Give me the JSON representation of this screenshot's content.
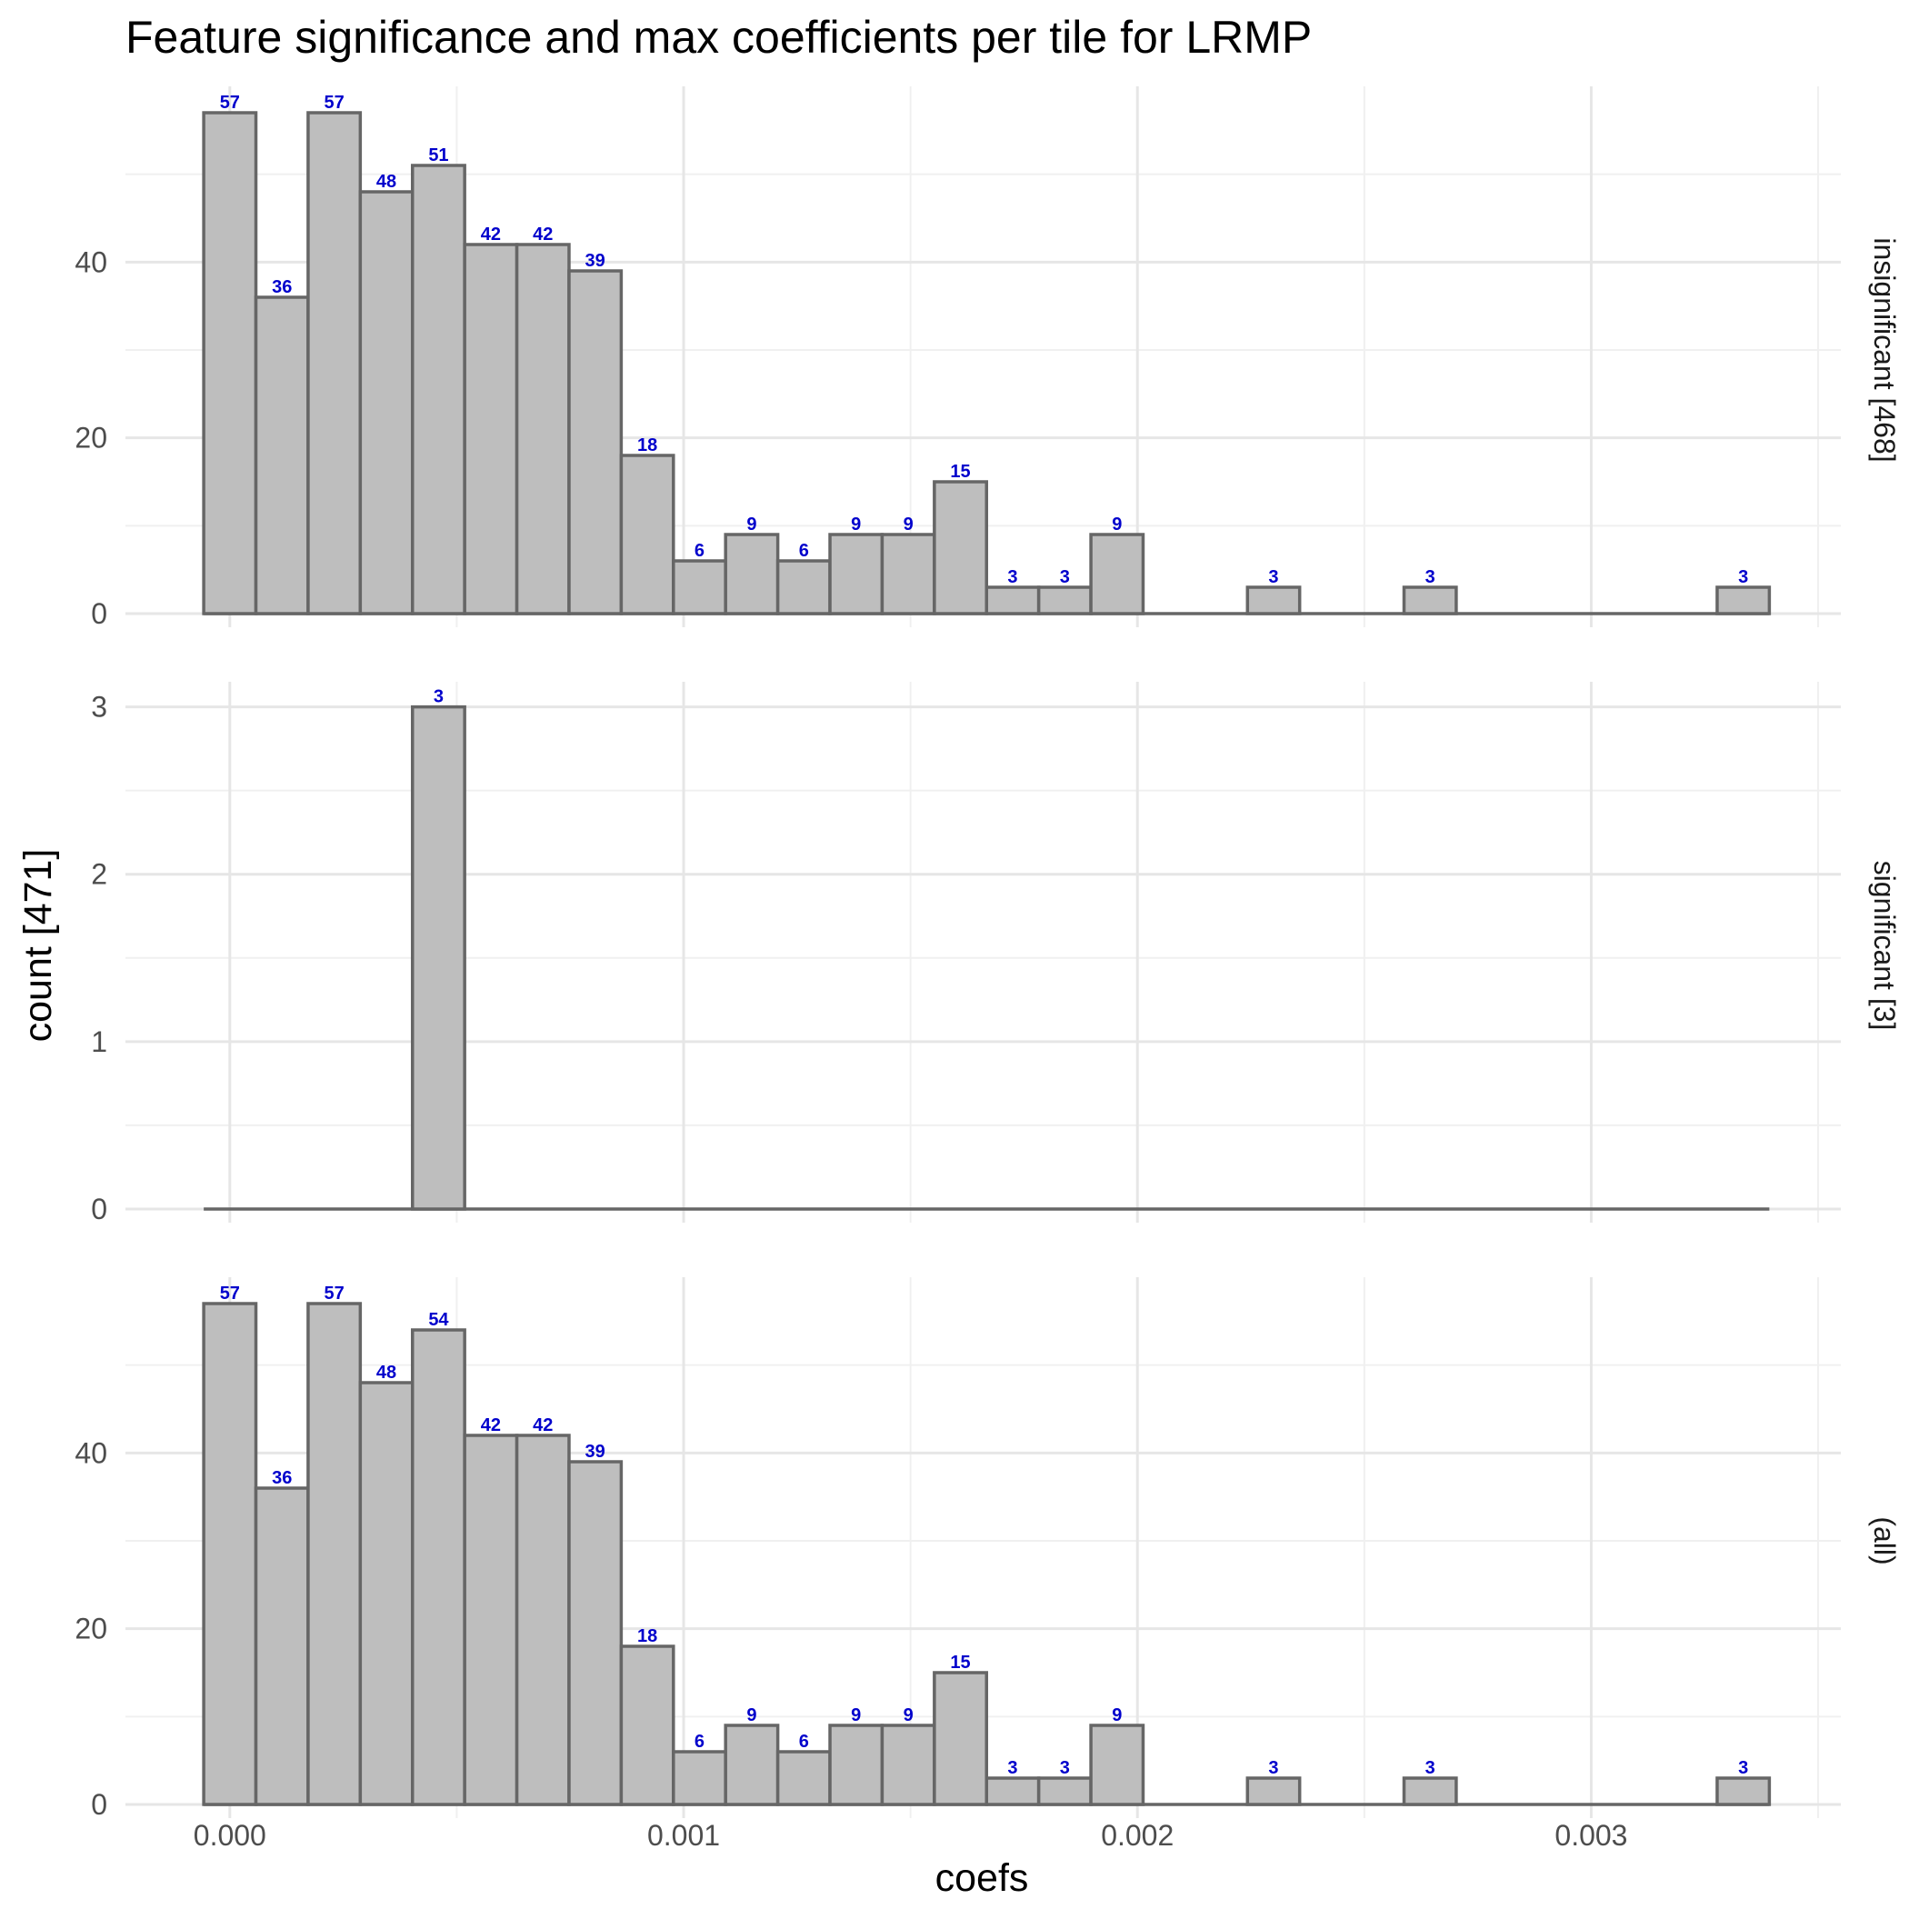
{
  "chart_data": {
    "type": "bar",
    "title": "Feature significance and max coefficients per tile for LRMP",
    "xlabel": "coefs",
    "ylabel": "count [471]",
    "xlim": [
      -0.00023,
      0.00355
    ],
    "x_ticks": [
      0.0,
      0.001,
      0.002,
      0.003
    ],
    "x_tick_labels": [
      "0.000",
      "0.001",
      "0.002",
      "0.003"
    ],
    "bin_width": 0.000115,
    "bin_centers": [
      0.0,
      0.000115,
      0.00023,
      0.000345,
      0.00046,
      0.000575,
      0.00069,
      0.000805,
      0.00092,
      0.001035,
      0.00115,
      0.001265,
      0.00138,
      0.001495,
      0.00161,
      0.001725,
      0.00184,
      0.001955,
      0.00207,
      0.002185,
      0.0023,
      0.002415,
      0.00253,
      0.002645,
      0.00276,
      0.002875,
      0.00299,
      0.003105,
      0.00322,
      0.003335
    ],
    "grid": true,
    "colors": {
      "bar_fill": "#bebebe",
      "bar_stroke": "#666666",
      "label": "#0000cc",
      "grid": "#e6e6e6"
    },
    "facets": [
      {
        "strip": "insignificant [468]",
        "ylim": [
          0,
          60
        ],
        "y_ticks": [
          0,
          20,
          40
        ],
        "counts": [
          57,
          36,
          57,
          48,
          51,
          42,
          42,
          39,
          18,
          6,
          9,
          6,
          9,
          9,
          15,
          3,
          3,
          9,
          0,
          0,
          3,
          0,
          0,
          3,
          0,
          0,
          0,
          0,
          0,
          3
        ]
      },
      {
        "strip": "significant [3]",
        "ylim": [
          0,
          3.15
        ],
        "y_ticks": [
          0,
          1,
          2,
          3
        ],
        "counts": [
          0,
          0,
          0,
          0,
          3,
          0,
          0,
          0,
          0,
          0,
          0,
          0,
          0,
          0,
          0,
          0,
          0,
          0,
          0,
          0,
          0,
          0,
          0,
          0,
          0,
          0,
          0,
          0,
          0,
          0
        ]
      },
      {
        "strip": "(all)",
        "ylim": [
          0,
          60
        ],
        "y_ticks": [
          0,
          20,
          40
        ],
        "counts": [
          57,
          36,
          57,
          48,
          54,
          42,
          42,
          39,
          18,
          6,
          9,
          6,
          9,
          9,
          15,
          3,
          3,
          9,
          0,
          0,
          3,
          0,
          0,
          3,
          0,
          0,
          0,
          0,
          0,
          3
        ]
      }
    ]
  }
}
